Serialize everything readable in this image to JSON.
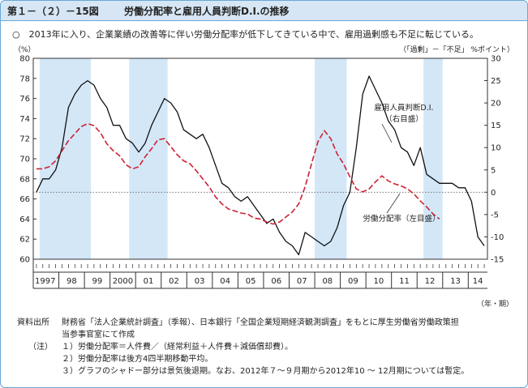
{
  "header": {
    "figure_no": "第１－（２）－15図",
    "title": "労働分配率と雇用人員判断D.I.の推移"
  },
  "summary": "○　2013年に入り、企業業績の改善等に伴い労働分配率が低下してきている中で、雇用過剰感も不足に転じている。",
  "units": {
    "left": "（%）",
    "right": "（「過剰」－「不足」 %ポイント）",
    "x": "（年・期）"
  },
  "chart_data": {
    "type": "line",
    "quarter_tick_label": "Ⅰ",
    "year_labels": [
      "1997",
      "98",
      "99",
      "2000",
      "01",
      "02",
      "03",
      "04",
      "05",
      "06",
      "07",
      "08",
      "09",
      "10",
      "11",
      "12",
      "13",
      "14"
    ],
    "left_axis": {
      "ylim": [
        60,
        80
      ],
      "ticks": [
        "60",
        "62",
        "64",
        "66",
        "68",
        "70",
        "72",
        "74",
        "76",
        "78",
        "80"
      ]
    },
    "right_axis": {
      "ylim": [
        -15,
        30
      ],
      "ticks": [
        "-15",
        "-10",
        "-5",
        "0",
        "5",
        "10",
        "15",
        "20",
        "25",
        "30"
      ]
    },
    "recession_shading": [
      {
        "start": "1997Q2",
        "end": "1999Q1"
      },
      {
        "start": "2000Q4",
        "end": "2002Q1"
      },
      {
        "start": "2008Q1",
        "end": "2009Q1"
      },
      {
        "start": "2012Q2",
        "end": "2012Q4"
      }
    ],
    "series": [
      {
        "name": "雇用人員判断D.I.\n（右目盛）",
        "axis": "right",
        "color": "#111111",
        "style": "solid",
        "start": "1997Q1",
        "values": [
          0,
          3,
          3,
          5,
          10,
          19,
          22,
          24,
          25,
          24,
          21,
          19,
          15,
          15,
          12,
          11,
          9,
          11,
          15,
          18,
          21,
          20,
          18,
          14,
          13,
          12,
          13,
          10,
          6,
          2,
          1,
          -1,
          -2,
          -1,
          -3,
          -5,
          -7,
          -6,
          -9,
          -11,
          -12,
          -14,
          -9,
          -10,
          -11,
          -12,
          -11,
          -8,
          -3,
          0,
          10,
          22,
          26,
          23,
          20,
          16,
          14,
          10,
          9,
          6,
          10,
          4,
          3,
          2,
          2,
          2,
          1,
          1,
          -2,
          -10,
          -12
        ]
      },
      {
        "name": "労働分配率（左目盛）",
        "axis": "left",
        "color": "#cc2233",
        "style": "dashed",
        "start": "1997Q1",
        "values": [
          69.0,
          69.0,
          69.2,
          69.8,
          70.8,
          71.8,
          72.5,
          73.2,
          73.5,
          73.3,
          72.6,
          71.5,
          70.8,
          70.3,
          69.4,
          69.0,
          69.2,
          70.2,
          71.0,
          71.9,
          72.0,
          71.2,
          70.4,
          69.8,
          69.5,
          68.8,
          68.0,
          67.2,
          66.2,
          65.5,
          65.0,
          64.8,
          64.6,
          64.5,
          64.1,
          64.0,
          63.7,
          63.5,
          63.7,
          64.2,
          64.7,
          65.5,
          67.2,
          69.5,
          71.7,
          72.8,
          72.0,
          70.5,
          69.5,
          68.2,
          67.0,
          66.7,
          67.0,
          67.7,
          68.3,
          67.8,
          67.5,
          67.3,
          67.0,
          66.5,
          65.8,
          65.2,
          64.5,
          64.0
        ]
      }
    ]
  },
  "notes": {
    "source_label": "資料出所",
    "source_text1": "財務省「法人企業統計調査」（季報）、日本銀行「全国企業短期経済観測調査」をもとに厚生労働省労働政策担",
    "source_text2": "当参事官室にて作成",
    "notes_label": "（注）",
    "note1": "１）労働分配率＝人件費／（経常利益＋人件費＋減価償却費）。",
    "note2": "２）労働分配率は後方4四半期移動平均。",
    "note3": "３）グラフのシャドー部分は景気後退期。なお、2012年７～９月期から2012年10 ～ 12月期については暫定。"
  }
}
